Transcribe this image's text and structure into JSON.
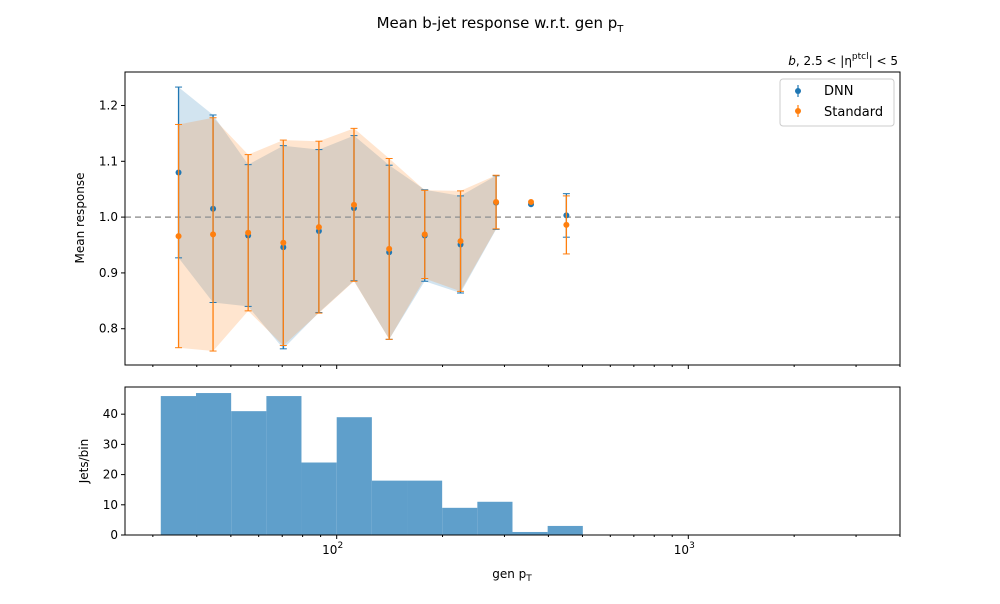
{
  "chart_data": [
    {
      "type": "scatter",
      "title": "Mean b-jet response w.r.t. gen p",
      "title_sub": "T",
      "region_label_pre": "b",
      "region_label_mid": ", 2.5 < |η",
      "region_label_sup": "ptcl",
      "region_label_post": "| < 5",
      "xlabel": "",
      "ylabel": "Mean response",
      "xscale": "log",
      "xlim": [
        25,
        4000
      ],
      "ylim": [
        0.735,
        1.26
      ],
      "yticks": [
        "0.8",
        "0.9",
        "1.0",
        "1.1",
        "1.2"
      ],
      "ytick_values": [
        0.8,
        0.9,
        1.0,
        1.1,
        1.2
      ],
      "reference_line": 1.0,
      "legend_position": "top-right",
      "series": [
        {
          "name": "DNN",
          "color": "#1f77b4",
          "x": [
            35.5,
            44.5,
            56,
            70.5,
            89,
            112,
            141,
            178,
            225,
            284,
            357,
            450
          ],
          "y": [
            1.08,
            1.015,
            0.967,
            0.946,
            0.975,
            1.016,
            0.937,
            0.967,
            0.951,
            1.026,
            1.023,
            1.003
          ],
          "yerr": [
            0.153,
            0.168,
            0.127,
            0.182,
            0.146,
            0.13,
            0.156,
            0.082,
            0.087,
            0.048,
            null,
            0.039
          ]
        },
        {
          "name": "Standard",
          "color": "#ff7f0e",
          "x": [
            35.5,
            44.5,
            56,
            70.5,
            89,
            112,
            141,
            178,
            225,
            284,
            357,
            450
          ],
          "y": [
            0.966,
            0.969,
            0.972,
            0.954,
            0.982,
            1.022,
            0.943,
            0.969,
            0.957,
            1.027,
            1.027,
            0.986
          ],
          "yerr": [
            0.2,
            0.209,
            0.14,
            0.184,
            0.154,
            0.137,
            0.162,
            0.079,
            0.09,
            0.048,
            null,
            0.052
          ]
        }
      ]
    },
    {
      "type": "bar",
      "xlabel": "gen p",
      "xlabel_sub": "T",
      "ylabel": "Jets/bin",
      "xscale": "log",
      "xlim": [
        25,
        4000
      ],
      "ylim": [
        0,
        49
      ],
      "yticks": [
        "0",
        "10",
        "20",
        "30",
        "40"
      ],
      "ytick_values": [
        0,
        10,
        20,
        30,
        40
      ],
      "xticks": [
        {
          "base": "10",
          "exp": "2",
          "value": 100
        },
        {
          "base": "10",
          "exp": "3",
          "value": 1000
        }
      ],
      "color": "#1f77b4",
      "bin_edges": [
        31.6,
        39.8,
        50.1,
        63.1,
        79.4,
        100,
        125.9,
        158.5,
        199.5,
        251.2,
        316.2,
        398.1,
        501.2,
        631
      ],
      "values": [
        46,
        47,
        41,
        46,
        24,
        39,
        18,
        18,
        9,
        11,
        1,
        3,
        0
      ]
    }
  ]
}
